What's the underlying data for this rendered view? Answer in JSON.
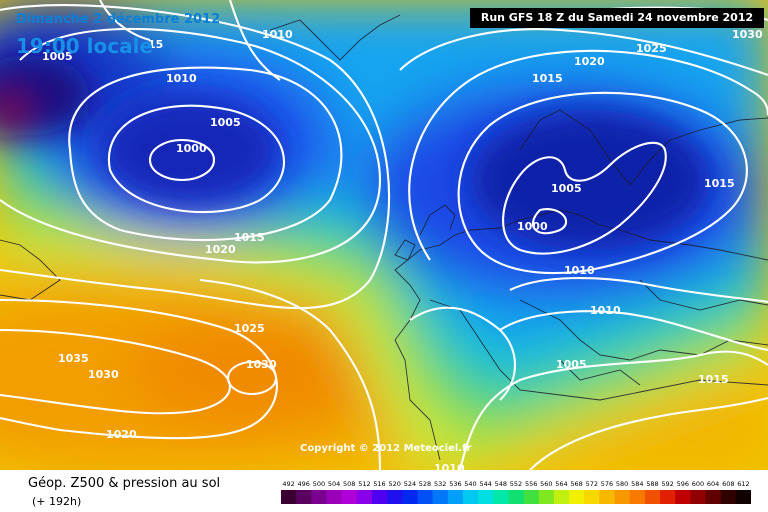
{
  "header": {
    "date": "Dimanche 2 décembre 2012",
    "time": "19:00 locale",
    "run": "Run GFS 18 Z du Samedi 24 novembre 2012"
  },
  "map": {
    "copyright": "Copyright © 2012 Meteociel.fr",
    "isobar_labels": [
      "1005",
      "15",
      "1010",
      "1010",
      "1005",
      "1000",
      "1015",
      "1020",
      "1025",
      "1035",
      "1030",
      "1030",
      "1020",
      "1025",
      "1030",
      "1020",
      "1015",
      "1005",
      "1000",
      "1010",
      "1010",
      "1005",
      "1015",
      "1015",
      "1010"
    ]
  },
  "footer": {
    "title": "Géop. Z500 & pression au sol",
    "subtitle": "(+ 192h)"
  },
  "scale": {
    "values": [
      "492",
      "496",
      "500",
      "504",
      "508",
      "512",
      "516",
      "520",
      "524",
      "528",
      "532",
      "536",
      "540",
      "544",
      "548",
      "552",
      "556",
      "560",
      "564",
      "568",
      "572",
      "576",
      "580",
      "584",
      "588",
      "592",
      "596",
      "600",
      "604",
      "608",
      "612"
    ],
    "colors": [
      "#3a0032",
      "#5a0060",
      "#7a0090",
      "#9a00b8",
      "#b000d8",
      "#8a00e8",
      "#5000f0",
      "#2010f0",
      "#0028f0",
      "#0050f8",
      "#0078f8",
      "#00a0f8",
      "#00c8f0",
      "#00e0e0",
      "#00e8a8",
      "#10e070",
      "#40e040",
      "#80e820",
      "#c0f010",
      "#f0f000",
      "#f8d800",
      "#f8b800",
      "#f89800",
      "#f87800",
      "#f05000",
      "#e02000",
      "#c00000",
      "#900000",
      "#600000",
      "#300000",
      "#100000"
    ]
  }
}
